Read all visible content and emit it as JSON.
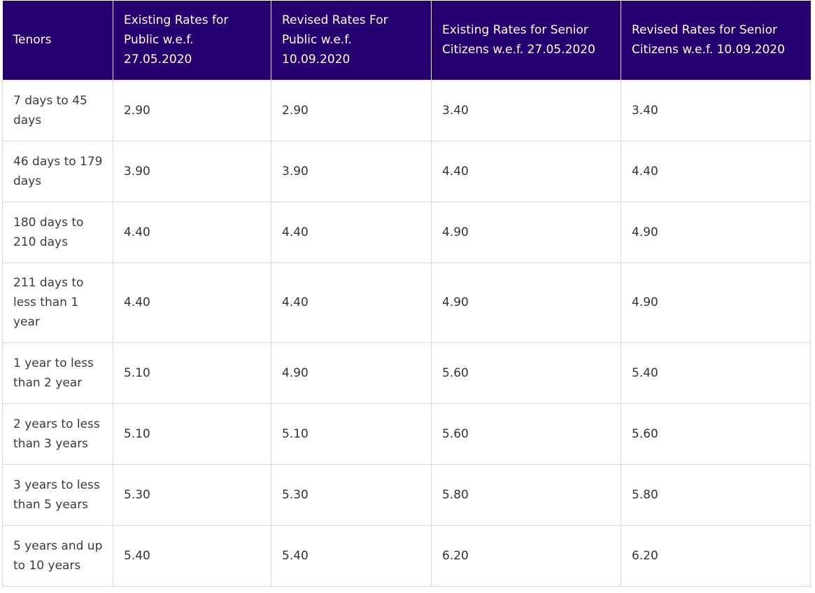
{
  "table": {
    "headers": [
      "Tenors",
      "Existing Rates for Public w.e.f. 27.05.2020",
      "Revised Rates For Public w.e.f. 10.09.2020",
      "Existing Rates for Senior Citizens w.e.f. 27.05.2020",
      "Revised Rates for Senior Citizens w.e.f. 10.09.2020"
    ],
    "rows": [
      [
        "7 days to 45 days",
        "2.90",
        "2.90",
        "3.40",
        "3.40"
      ],
      [
        "46 days to 179 days",
        "3.90",
        "3.90",
        "4.40",
        "4.40"
      ],
      [
        "180 days to 210 days",
        "4.40",
        "4.40",
        "4.90",
        "4.90"
      ],
      [
        "211 days to less than 1 year",
        "4.40",
        "4.40",
        "4.90",
        "4.90"
      ],
      [
        "1 year to less than 2 year",
        "5.10",
        "4.90",
        "5.60",
        "5.40"
      ],
      [
        "2 years to less than 3 years",
        "5.10",
        "5.10",
        "5.60",
        "5.60"
      ],
      [
        "3 years to less than 5 years",
        "5.30",
        "5.30",
        "5.80",
        "5.80"
      ],
      [
        "5 years and up to 10 years",
        "5.40",
        "5.40",
        "6.20",
        "6.20"
      ]
    ]
  },
  "colors": {
    "header_bg": "#270070",
    "header_text": "#ffffff",
    "border": "#d9d9d9"
  }
}
